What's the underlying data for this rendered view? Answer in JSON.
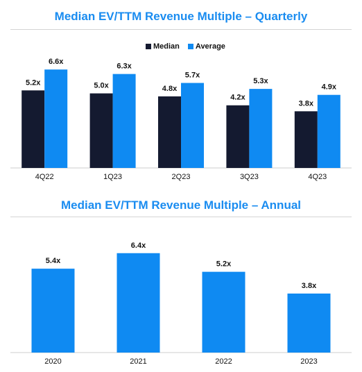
{
  "colors": {
    "median": "#141a30",
    "average": "#0f8af2",
    "title": "#1a8cf0",
    "axis": "#cccccc"
  },
  "chart_data": [
    {
      "type": "bar",
      "title": "Median EV/TTM Revenue Multiple – Quarterly",
      "categories": [
        "4Q22",
        "1Q23",
        "2Q23",
        "3Q23",
        "4Q23"
      ],
      "series": [
        {
          "name": "Median",
          "values": [
            5.2,
            5.0,
            4.8,
            4.2,
            3.8
          ],
          "labels": [
            "5.2x",
            "5.0x",
            "4.8x",
            "4.2x",
            "3.8x"
          ],
          "color": "#141a30"
        },
        {
          "name": "Average",
          "values": [
            6.6,
            6.3,
            5.7,
            5.3,
            4.9
          ],
          "labels": [
            "6.6x",
            "6.3x",
            "5.7x",
            "5.3x",
            "4.9x"
          ],
          "color": "#0f8af2"
        }
      ],
      "ylim": [
        0,
        9.4
      ],
      "legend": "top-center",
      "grid": false
    },
    {
      "type": "bar",
      "title": "Median EV/TTM Revenue Multiple – Annual",
      "categories": [
        "2020",
        "2021",
        "2022",
        "2023"
      ],
      "series": [
        {
          "values": [
            5.4,
            6.4,
            5.2,
            3.8
          ],
          "labels": [
            "5.4x",
            "6.4x",
            "5.2x",
            "3.8x"
          ],
          "color": "#0f8af2"
        }
      ],
      "ylim": [
        0,
        8.4
      ],
      "legend": "none",
      "grid": false
    }
  ]
}
